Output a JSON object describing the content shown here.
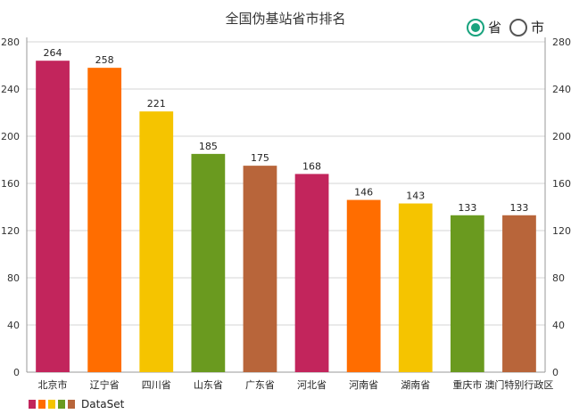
{
  "title": "全国伪基站省市排名",
  "toggle": {
    "province_label": "省",
    "city_label": "市",
    "selected": "province",
    "accent_color": "#19a37e"
  },
  "legend": {
    "label": "DataSet",
    "colors": [
      "#c2255c",
      "#ff6d00",
      "#f5c400",
      "#6a9a1f",
      "#b8653a"
    ]
  },
  "chart_data": {
    "type": "bar",
    "title": "全国伪基站省市排名",
    "categories": [
      "北京市",
      "辽宁省",
      "四川省",
      "山东省",
      "广东省",
      "河北省",
      "河南省",
      "湖南省",
      "重庆市",
      "澳门特别行政区"
    ],
    "values": [
      264,
      258,
      221,
      185,
      175,
      168,
      146,
      143,
      133,
      133
    ],
    "colors": [
      "#c2255c",
      "#ff6d00",
      "#f5c400",
      "#6a9a1f",
      "#b8653a",
      "#c2255c",
      "#ff6d00",
      "#f5c400",
      "#6a9a1f",
      "#b8653a"
    ],
    "series": [
      {
        "name": "DataSet",
        "values": [
          264,
          258,
          221,
          185,
          175,
          168,
          146,
          143,
          133,
          133
        ]
      }
    ],
    "ylim": [
      0,
      280
    ],
    "yticks": [
      0,
      40,
      80,
      120,
      160,
      200,
      240,
      280
    ],
    "grid": true,
    "legend_position": "bottom-left",
    "right_axis": true
  }
}
